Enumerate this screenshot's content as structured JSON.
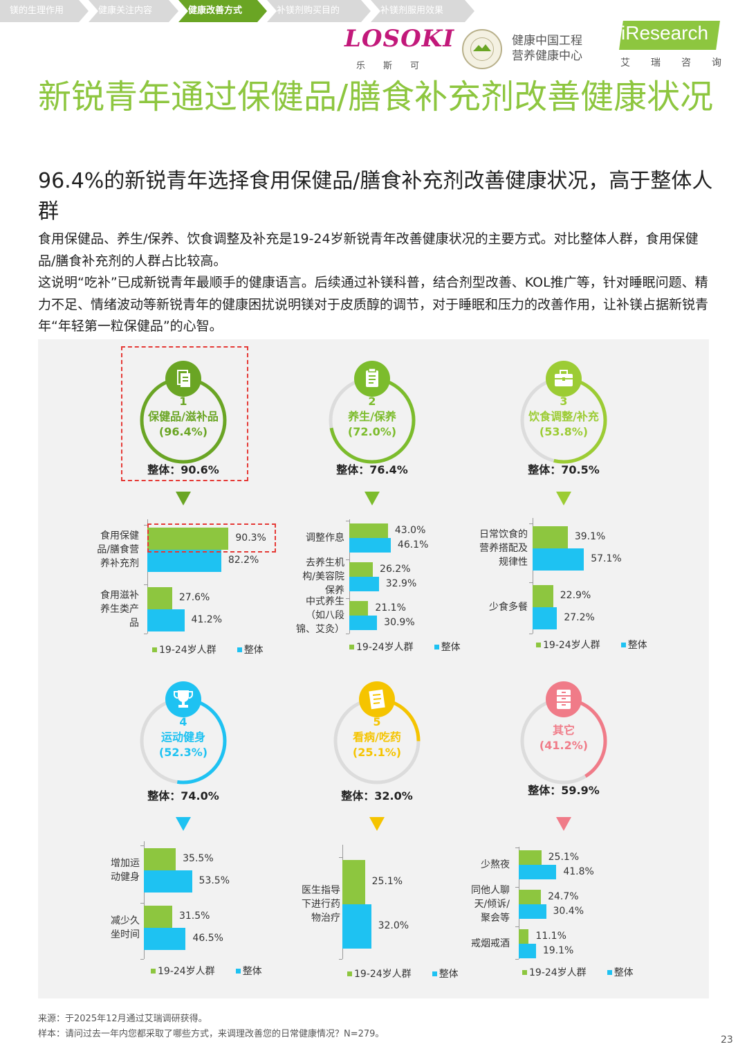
{
  "nav": {
    "tabs": [
      "镁的生理作用",
      "健康关注内容",
      "健康改善方式",
      "补镁剂购买目的",
      "补镁剂服用效果"
    ],
    "active_index": 2
  },
  "logos": {
    "losoki": "LOSOKI",
    "losoki_sub": "乐斯可",
    "center_line1": "健康中国工程",
    "center_line2": "营养健康中心",
    "iresearch": "iResearch",
    "iresearch_sub": "艾瑞咨询"
  },
  "title": "新锐青年通过保健品/膳食补充剂改善健康状况",
  "subtitle": "96.4%的新锐青年选择食用保健品/膳食补充剂改善健康状况，高于整体人群",
  "body": {
    "para1": "食用保健品、养生/保养、饮食调整及补充是19-24岁新锐青年改善健康状况的主要方式。对比整体人群，食用保健品/膳食补充剂的人群占比较高。",
    "para2": "这说明“吃补”已成新锐青年最顺手的健康语言。后续通过补镁科普，结合剂型改善、KOL推广等，针对睡眠问题、精力不足、情绪波动等新锐青年的健康困扰说明镁对于皮质醇的调节，对于睡眠和压力的改善作用，让补镁占据新锐青年“年轻第一粒保健品”的心智。"
  },
  "legend": {
    "young": "19-24岁人群",
    "overall": "整体"
  },
  "colors": {
    "green": "#8dc63f",
    "blue": "#1ec2f2",
    "dark_green": "#6aa524",
    "yellow": "#f5c400",
    "pink": "#f07b88"
  },
  "chart_data": [
    {
      "type": "bar",
      "rank": "1",
      "name": "保健品/滋补品",
      "pct": "(96.4%)",
      "overall_label": "整体：90.6%",
      "ring_value": 96.4,
      "color": "#6aa524",
      "icon": "documents-icon",
      "categories": [
        "食用保健品/膳食营养补充剂",
        "食用滋补养生类产品"
      ],
      "cat_lines": [
        [
          "食用保健",
          "品/膳食营",
          "养补充剂"
        ],
        [
          "食用滋补",
          "养生类产",
          "品"
        ]
      ],
      "series": [
        {
          "name": "19-24岁人群",
          "values": [
            90.3,
            27.6
          ]
        },
        {
          "name": "整体",
          "values": [
            82.2,
            41.2
          ]
        }
      ]
    },
    {
      "type": "bar",
      "rank": "2",
      "name": "养生/保养",
      "pct": "(72.0%)",
      "overall_label": "整体：76.4%",
      "ring_value": 72.0,
      "color": "#7cbc2c",
      "icon": "clipboard-icon",
      "categories": [
        "调整作息",
        "去养生机构/美容院保养",
        "中式养生（如八段锦、艾灸）"
      ],
      "cat_lines": [
        [
          "调整作息"
        ],
        [
          "去养生机",
          "构/美容院",
          "保养"
        ],
        [
          "中式养生",
          "（如八段",
          "锦、艾灸）"
        ]
      ],
      "series": [
        {
          "name": "19-24岁人群",
          "values": [
            43.0,
            26.2,
            21.1
          ]
        },
        {
          "name": "整体",
          "values": [
            46.1,
            32.9,
            30.9
          ]
        }
      ]
    },
    {
      "type": "bar",
      "rank": "3",
      "name": "饮食调整/补充",
      "pct": "(53.8%)",
      "overall_label": "整体：70.5%",
      "ring_value": 53.8,
      "color": "#9ccc34",
      "icon": "briefcase-icon",
      "categories": [
        "日常饮食的营养搭配及规律性",
        "少食多餐"
      ],
      "cat_lines": [
        [
          "日常饮食的",
          "营养搭配及",
          "规律性"
        ],
        [
          "少食多餐"
        ]
      ],
      "series": [
        {
          "name": "19-24岁人群",
          "values": [
            39.1,
            22.9
          ]
        },
        {
          "name": "整体",
          "values": [
            57.1,
            27.2
          ]
        }
      ]
    },
    {
      "type": "bar",
      "rank": "4",
      "name": "运动健身",
      "pct": "(52.3%)",
      "overall_label": "整体：74.0%",
      "ring_value": 52.3,
      "color": "#1ec2f2",
      "icon": "trophy-icon",
      "categories": [
        "增加运动健身",
        "减少久坐时间"
      ],
      "cat_lines": [
        [
          "增加运",
          "动健身"
        ],
        [
          "减少久",
          "坐时间"
        ]
      ],
      "series": [
        {
          "name": "19-24岁人群",
          "values": [
            35.5,
            31.5
          ]
        },
        {
          "name": "整体",
          "values": [
            53.5,
            46.5
          ]
        }
      ]
    },
    {
      "type": "bar",
      "rank": "5",
      "name": "看病/吃药",
      "pct": "(25.1%)",
      "overall_label": "整体：32.0%",
      "ring_value": 25.1,
      "color": "#f5c400",
      "icon": "notes-icon",
      "categories": [
        "医生指导下进行药物治疗"
      ],
      "cat_lines": [
        [
          "医生指导",
          "下进行药",
          "物治疗"
        ]
      ],
      "series": [
        {
          "name": "19-24岁人群",
          "values": [
            25.1
          ]
        },
        {
          "name": "整体",
          "values": [
            32.0
          ]
        }
      ]
    },
    {
      "type": "bar",
      "rank": "",
      "name": "其它",
      "pct": "(41.2%)",
      "overall_label": "整体：59.9%",
      "ring_value": 41.2,
      "color": "#f07b88",
      "icon": "cabinet-icon",
      "categories": [
        "少熬夜",
        "同他人聊天/倾诉/聚会等",
        "戒烟戒酒"
      ],
      "cat_lines": [
        [
          "少熬夜"
        ],
        [
          "同他人聊",
          "天/倾诉/",
          "聚会等"
        ],
        [
          "戒烟戒酒"
        ]
      ],
      "series": [
        {
          "name": "19-24岁人群",
          "values": [
            25.1,
            24.7,
            11.1
          ]
        },
        {
          "name": "整体",
          "values": [
            41.8,
            30.4,
            19.1
          ]
        }
      ]
    }
  ],
  "footnotes": {
    "source": "来源：于2025年12月通过艾瑞调研获得。",
    "sample": "样本：请问过去一年内您都采取了哪些方式，来调理改善您的日常健康情况？N=279。"
  },
  "page_number": "23"
}
